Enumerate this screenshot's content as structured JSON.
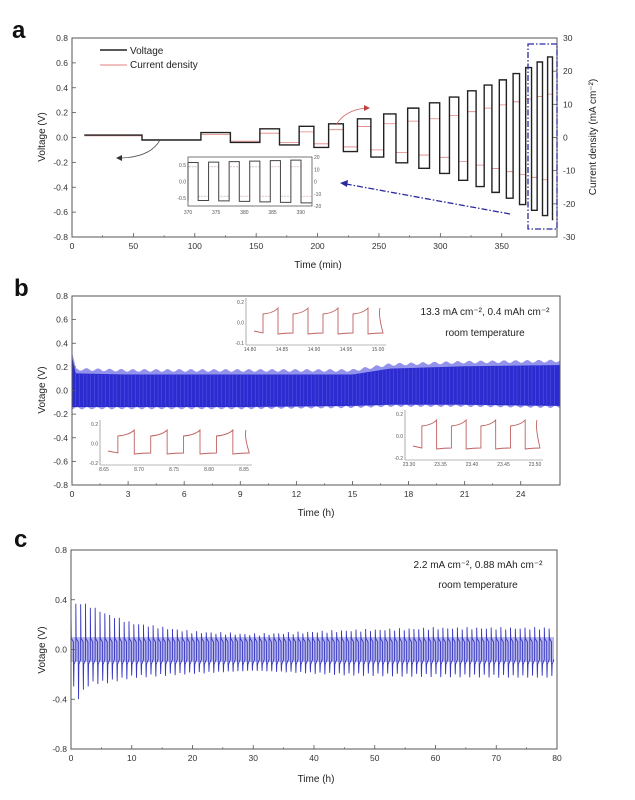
{
  "chart_data": [
    {
      "panel": "a",
      "type": "line",
      "title": "",
      "xlabel": "Time (min)",
      "ylabel": "Voltage (V)",
      "y2label": "Current density (mA cm⁻²)",
      "xlim": [
        0,
        395
      ],
      "ylim": [
        -0.8,
        0.8
      ],
      "y2lim": [
        -30,
        30
      ],
      "xticks": [
        "0",
        "50",
        "100",
        "150",
        "200",
        "250",
        "300",
        "350"
      ],
      "yticks": [
        "-0.8",
        "-0.6",
        "-0.4",
        "-0.2",
        "0.0",
        "0.2",
        "0.4",
        "0.6",
        "0.8"
      ],
      "y2ticks": [
        "-30",
        "-20",
        "-10",
        "0",
        "10",
        "20",
        "30"
      ],
      "legend": {
        "placement": "top-left",
        "entries": [
          {
            "name": "Voltage",
            "color": "#222222"
          },
          {
            "name": "Current density",
            "color": "#e08080"
          }
        ]
      },
      "series": [
        {
          "name": "Voltage",
          "color": "#222222",
          "description": "square-wave galvanostatic steps with growing amplitude",
          "steps": [
            {
              "t_start": 10,
              "t_end": 57,
              "v": 0.02
            },
            {
              "t_start": 57,
              "t_end": 105,
              "v": -0.02
            },
            {
              "t_start": 105,
              "t_end": 129,
              "v": 0.04
            },
            {
              "t_start": 129,
              "t_end": 153,
              "v": -0.04
            },
            {
              "t_start": 153,
              "t_end": 169,
              "v": 0.07
            },
            {
              "t_start": 169,
              "t_end": 185,
              "v": -0.06
            },
            {
              "t_start": 185,
              "t_end": 197,
              "v": 0.09
            },
            {
              "t_start": 197,
              "t_end": 209,
              "v": -0.08
            }
          ],
          "envelope": {
            "t": [
              209,
              250,
              300,
              350,
              390
            ],
            "v_max": [
              0.11,
              0.18,
              0.3,
              0.47,
              0.66
            ],
            "v_min": [
              -0.09,
              -0.17,
              -0.29,
              -0.47,
              -0.66
            ]
          }
        },
        {
          "name": "Current density",
          "color": "#e08080",
          "units": "mA cm-2",
          "envelope": {
            "t": [
              10,
              100,
              200,
              250,
              300,
              350,
              390
            ],
            "i_max": [
              0.5,
              0.5,
              2.0,
              4.0,
              6.0,
              10.0,
              13.3
            ],
            "i_min": [
              -0.5,
              -0.5,
              -2.0,
              -4.0,
              -6.0,
              -10.0,
              -13.3
            ]
          }
        }
      ],
      "inset": {
        "xticks": [
          "370",
          "375",
          "380",
          "385",
          "390"
        ],
        "yticks": [
          "0.5",
          "0.0",
          "-0.5"
        ],
        "y2ticks": [
          "20",
          "10",
          "0",
          "-10",
          "-20"
        ],
        "xlim": [
          370,
          392
        ],
        "ylim": [
          -0.75,
          0.75
        ],
        "cycles": 6,
        "voltage_amplitude": 0.6,
        "current_amplitude": 13.3
      },
      "highlight_box": {
        "t_range": [
          370,
          395
        ],
        "style": "dash-dot",
        "color": "#2a2aa0"
      }
    },
    {
      "panel": "b",
      "type": "line",
      "xlabel": "Time (h)",
      "ylabel": "Votage (V)",
      "xlim": [
        0,
        26.1
      ],
      "ylim": [
        -0.8,
        0.8
      ],
      "xticks": [
        "0",
        "3",
        "6",
        "9",
        "12",
        "15",
        "18",
        "21",
        "24"
      ],
      "yticks": [
        "-0.8",
        "-0.6",
        "-0.4",
        "-0.2",
        "0.0",
        "0.2",
        "0.4",
        "0.6",
        "0.8"
      ],
      "annotation": [
        "13.3 mA cm⁻², 0.4 mAh cm⁻²",
        "room temperature"
      ],
      "series": [
        {
          "name": "Voltage",
          "color": "#2f2fcf",
          "envelope": {
            "t": [
              0,
              0.2,
              3,
              9,
              15,
              17,
              21,
              26
            ],
            "v_max": [
              0.32,
              0.18,
              0.17,
              0.17,
              0.17,
              0.22,
              0.24,
              0.25
            ],
            "v_min": [
              -0.15,
              -0.15,
              -0.15,
              -0.15,
              -0.14,
              -0.13,
              -0.13,
              -0.14
            ]
          }
        }
      ],
      "insets": [
        {
          "position": "top-middle",
          "xticks": [
            "14.80",
            "14.85",
            "14.90",
            "14.95",
            "15.00"
          ],
          "yticks": [
            "0.2",
            "0.0",
            "-0.1"
          ],
          "cycles": 4,
          "color": "#c06060"
        },
        {
          "position": "bottom-left",
          "xticks": [
            "8.65",
            "8.70",
            "8.75",
            "8.80",
            "8.85"
          ],
          "yticks": [
            "0.2",
            "0.0",
            "-0.2"
          ],
          "cycles": 4,
          "color": "#c06060"
        },
        {
          "position": "bottom-right",
          "xticks": [
            "23.30",
            "23.35",
            "23.40",
            "23.45",
            "23.50"
          ],
          "yticks": [
            "0.2",
            "0.0",
            "-0.2"
          ],
          "cycles": 4,
          "color": "#c06060"
        }
      ]
    },
    {
      "panel": "c",
      "type": "line",
      "xlabel": "Time (h)",
      "ylabel": "Votage (V)",
      "xlim": [
        0,
        80
      ],
      "ylim": [
        -0.8,
        0.8
      ],
      "xticks": [
        "0",
        "10",
        "20",
        "30",
        "40",
        "50",
        "60",
        "70",
        "80"
      ],
      "yticks": [
        "-0.8",
        "-0.4",
        "0.0",
        "0.4",
        "0.8"
      ],
      "annotation": [
        "2.2 mA cm⁻², 0.88 mAh cm⁻²",
        "room temperature"
      ],
      "series": [
        {
          "name": "Voltage",
          "color": "#3535c0",
          "cycles": 100,
          "envelope": {
            "t": [
              0,
              1,
              3,
              6,
              10,
              20,
              30,
              45,
              60,
              80
            ],
            "v_max": [
              0.3,
              0.38,
              0.35,
              0.28,
              0.21,
              0.14,
              0.12,
              0.15,
              0.17,
              0.17
            ],
            "v_min": [
              -0.25,
              -0.4,
              -0.27,
              -0.26,
              -0.22,
              -0.19,
              -0.17,
              -0.2,
              -0.21,
              -0.22
            ]
          }
        }
      ]
    }
  ],
  "panel_letters": [
    "a",
    "b",
    "c"
  ]
}
